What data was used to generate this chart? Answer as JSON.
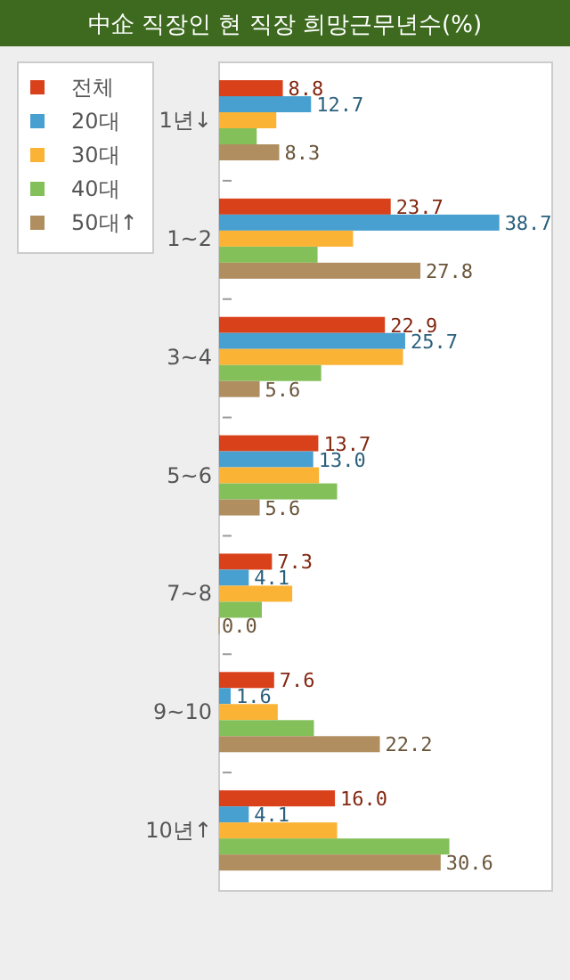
{
  "chart_data": {
    "type": "bar",
    "orientation": "horizontal",
    "title": "中企 직장인 현 직장 희망근무년수(%)",
    "categories": [
      "1년↓",
      "1~2",
      "3~4",
      "5~6",
      "7~8",
      "9~10",
      "10년↑"
    ],
    "xlim": [
      0,
      46
    ],
    "legend": "left",
    "series": [
      {
        "name": "전체",
        "color": "#d9411b",
        "values": [
          8.8,
          23.7,
          22.9,
          13.7,
          7.3,
          7.6,
          16.0
        ],
        "value_labels": [
          "8.8",
          "23.7",
          "22.9",
          "13.7",
          "7.3",
          "7.6",
          "16.0"
        ]
      },
      {
        "name": "20대",
        "color": "#48a0d0",
        "values": [
          12.7,
          38.7,
          25.7,
          13.0,
          4.1,
          1.6,
          4.1
        ],
        "value_labels": [
          "12.7",
          "38.7",
          "25.7",
          "13.0",
          "4.1",
          "1.6",
          "4.1"
        ]
      },
      {
        "name": "30대",
        "color": "#fbb335",
        "values": [
          7.9,
          18.5,
          25.4,
          13.8,
          10.1,
          8.1,
          16.3
        ]
      },
      {
        "name": "40대",
        "color": "#84c05a",
        "values": [
          5.2,
          13.6,
          14.1,
          16.3,
          5.9,
          13.1,
          31.8
        ]
      },
      {
        "name": "50대↑",
        "color": "#b08e60",
        "values": [
          8.3,
          27.8,
          5.6,
          5.6,
          0.0,
          22.2,
          30.6
        ],
        "value_labels": [
          "8.3",
          "27.8",
          "5.6",
          "5.6",
          "0.0",
          "22.2",
          "30.6"
        ]
      }
    ]
  }
}
